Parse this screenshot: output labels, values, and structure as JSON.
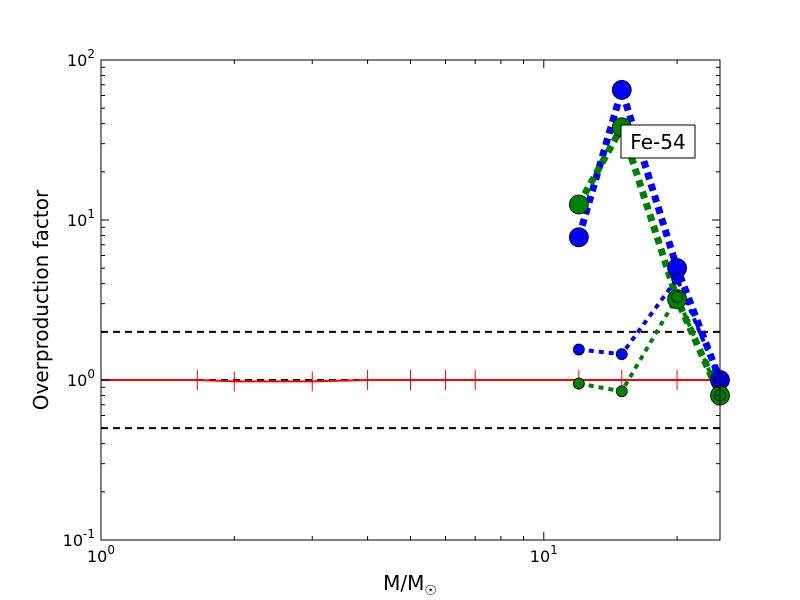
{
  "chart_data": {
    "type": "line",
    "xlabel": "M/M",
    "xlabel_sub": "☉",
    "ylabel": "Overproduction factor",
    "xscale": "log",
    "yscale": "log",
    "xlim": [
      1,
      25
    ],
    "ylim": [
      0.1,
      100
    ],
    "x_ticks": [
      {
        "value": 1,
        "base": "10",
        "exp": "0"
      },
      {
        "value": 10,
        "base": "10",
        "exp": "1"
      }
    ],
    "y_ticks": [
      {
        "value": 0.1,
        "base": "10",
        "exp": "-1"
      },
      {
        "value": 1,
        "base": "10",
        "exp": "0"
      },
      {
        "value": 10,
        "base": "10",
        "exp": "1"
      },
      {
        "value": 100,
        "base": "10",
        "exp": "2"
      }
    ],
    "annotation": "Fe-54",
    "reference_lines": [
      0.5,
      1.0,
      2.0
    ],
    "reference_color": "#000000",
    "baseline": {
      "color": "#ff0000",
      "x": [
        1,
        1.65,
        2,
        3,
        4,
        5,
        6,
        7,
        12,
        15,
        20,
        25
      ],
      "y": [
        1.0,
        1.0,
        0.98,
        0.98,
        1.0,
        1.0,
        1.0,
        1.0,
        1.0,
        1.0,
        1.0,
        1.0
      ]
    },
    "series": [
      {
        "color": "#0000ff",
        "marker": "large",
        "line": "thick-dotted",
        "x": [
          12,
          15,
          20,
          25
        ],
        "y": [
          7.8,
          65,
          5.0,
          1.0
        ]
      },
      {
        "color": "#008000",
        "marker": "large",
        "line": "thick-dotted",
        "x": [
          12,
          15,
          20,
          25
        ],
        "y": [
          12.5,
          38,
          3.2,
          0.8
        ]
      },
      {
        "color": "#0000ff",
        "marker": "small",
        "line": "thin-dotted",
        "x": [
          12,
          15,
          20,
          25
        ],
        "y": [
          1.55,
          1.45,
          4.3,
          1.0
        ]
      },
      {
        "color": "#008000",
        "marker": "small",
        "line": "thin-dotted",
        "x": [
          12,
          15,
          20,
          25
        ],
        "y": [
          0.95,
          0.85,
          3.3,
          0.8
        ]
      }
    ]
  }
}
